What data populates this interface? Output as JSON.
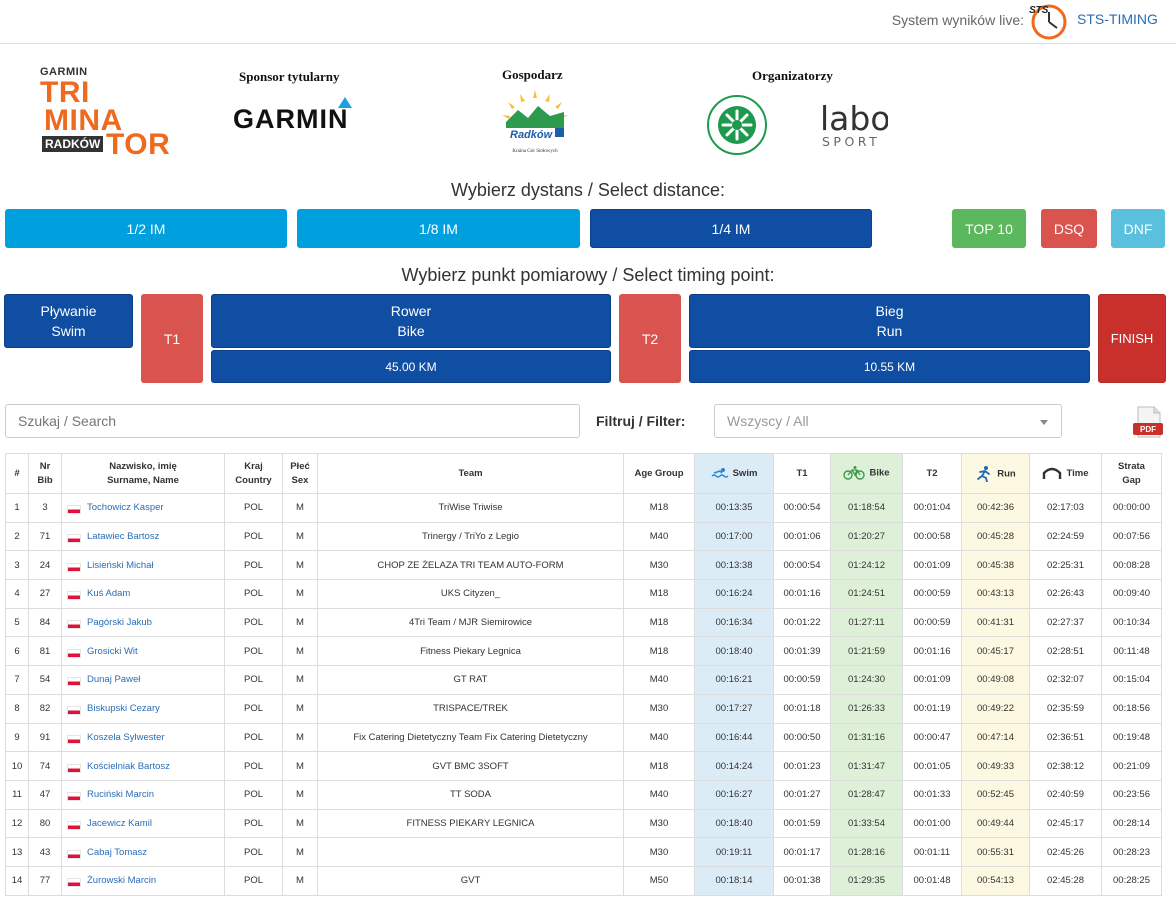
{
  "topbar": {
    "live_label": "System wyników live:",
    "logo_text": "STS",
    "link": "STS-TIMING"
  },
  "logos": {
    "triminator": {
      "garmin": "GARMIN",
      "line1": "TRI",
      "line2": "MINA",
      "radkow": "RADKÓW",
      "tor": "TOR"
    },
    "title_sponsor_heading": "Sponsor tytularny",
    "title_sponsor": "GARMIN",
    "host_heading": "Gospodarz",
    "host_name": "Radków",
    "host_caption": "Kraina Gór Stołowych",
    "organizers_heading": "Organizatorzy",
    "labo_line1": "labo",
    "labo_line2": "SPORT"
  },
  "distance": {
    "title": "Wybierz dystans / Select distance:",
    "buttons": [
      "1/2 IM",
      "1/8 IM",
      "1/4 IM"
    ],
    "top10": "TOP 10",
    "dsq": "DSQ",
    "dnf": "DNF"
  },
  "timing": {
    "title": "Wybierz punkt pomiarowy / Select timing point:",
    "swim_l1": "Pływanie",
    "swim_l2": "Swim",
    "t1": "T1",
    "bike_l1": "Rower",
    "bike_l2": "Bike",
    "bike_dist": "45.00 KM",
    "t2": "T2",
    "run_l1": "Bieg",
    "run_l2": "Run",
    "run_dist": "10.55 KM",
    "finish": "FINISH"
  },
  "search": {
    "placeholder": "Szukaj / Search"
  },
  "filter": {
    "label": "Filtruj / Filter:",
    "value": "Wszyscy / All"
  },
  "pdf_label": "PDF",
  "table": {
    "headers": {
      "rank": "#",
      "bib_l1": "Nr",
      "bib_l2": "Bib",
      "name_l1": "Nazwisko, imię",
      "name_l2": "Surname, Name",
      "country_l1": "Kraj",
      "country_l2": "Country",
      "sex_l1": "Płeć",
      "sex_l2": "Sex",
      "team": "Team",
      "age": "Age Group",
      "swim": "Swim",
      "t1": "T1",
      "bike": "Bike",
      "t2": "T2",
      "run": "Run",
      "time": "Time",
      "gap_l1": "Strata",
      "gap_l2": "Gap"
    },
    "rows": [
      [
        "1",
        "3",
        "Tochowicz Kasper",
        "POL",
        "M",
        "TriWise Triwise",
        "M18",
        "00:13:35",
        "00:00:54",
        "01:18:54",
        "00:01:04",
        "00:42:36",
        "02:17:03",
        "00:00:00"
      ],
      [
        "2",
        "71",
        "Latawiec Bartosz",
        "POL",
        "M",
        "Trinergy / TriYo z Legio",
        "M40",
        "00:17:00",
        "00:01:06",
        "01:20:27",
        "00:00:58",
        "00:45:28",
        "02:24:59",
        "00:07:56"
      ],
      [
        "3",
        "24",
        "Lisieński Michał",
        "POL",
        "M",
        "CHOP ZE ŻELAZA TRI TEAM AUTO-FORM",
        "M30",
        "00:13:38",
        "00:00:54",
        "01:24:12",
        "00:01:09",
        "00:45:38",
        "02:25:31",
        "00:08:28"
      ],
      [
        "4",
        "27",
        "Kuś Adam",
        "POL",
        "M",
        "UKS Cityzen_",
        "M18",
        "00:16:24",
        "00:01:16",
        "01:24:51",
        "00:00:59",
        "00:43:13",
        "02:26:43",
        "00:09:40"
      ],
      [
        "5",
        "84",
        "Pagórski Jakub",
        "POL",
        "M",
        "4Tri Team / MJR Siemirowice",
        "M18",
        "00:16:34",
        "00:01:22",
        "01:27:11",
        "00:00:59",
        "00:41:31",
        "02:27:37",
        "00:10:34"
      ],
      [
        "6",
        "81",
        "Grosicki Wit",
        "POL",
        "M",
        "Fitness Piekary Legnica",
        "M18",
        "00:18:40",
        "00:01:39",
        "01:21:59",
        "00:01:16",
        "00:45:17",
        "02:28:51",
        "00:11:48"
      ],
      [
        "7",
        "54",
        "Dunaj Paweł",
        "POL",
        "M",
        "GT RAT",
        "M40",
        "00:16:21",
        "00:00:59",
        "01:24:30",
        "00:01:09",
        "00:49:08",
        "02:32:07",
        "00:15:04"
      ],
      [
        "8",
        "82",
        "Biskupski Cezary",
        "POL",
        "M",
        "TRISPACE/TREK",
        "M30",
        "00:17:27",
        "00:01:18",
        "01:26:33",
        "00:01:19",
        "00:49:22",
        "02:35:59",
        "00:18:56"
      ],
      [
        "9",
        "91",
        "Koszela Sylwester",
        "POL",
        "M",
        "Fix Catering Dietetyczny Team Fix Catering Dietetyczny",
        "M40",
        "00:16:44",
        "00:00:50",
        "01:31:16",
        "00:00:47",
        "00:47:14",
        "02:36:51",
        "00:19:48"
      ],
      [
        "10",
        "74",
        "Kościelniak Bartosz",
        "POL",
        "M",
        "GVT BMC 3SOFT",
        "M18",
        "00:14:24",
        "00:01:23",
        "01:31:47",
        "00:01:05",
        "00:49:33",
        "02:38:12",
        "00:21:09"
      ],
      [
        "11",
        "47",
        "Ruciński Marcin",
        "POL",
        "M",
        "TT SODA",
        "M40",
        "00:16:27",
        "00:01:27",
        "01:28:47",
        "00:01:33",
        "00:52:45",
        "02:40:59",
        "00:23:56"
      ],
      [
        "12",
        "80",
        "Jacewicz Kamil",
        "POL",
        "M",
        "FITNESS PIEKARY LEGNICA",
        "M30",
        "00:18:40",
        "00:01:59",
        "01:33:54",
        "00:01:00",
        "00:49:44",
        "02:45:17",
        "00:28:14"
      ],
      [
        "13",
        "43",
        "Cabaj Tomasz",
        "POL",
        "M",
        "",
        "M30",
        "00:19:11",
        "00:01:17",
        "01:28:16",
        "00:01:11",
        "00:55:31",
        "02:45:26",
        "00:28:23"
      ],
      [
        "14",
        "77",
        "Żurowski Marcin",
        "POL",
        "M",
        "GVT",
        "M50",
        "00:18:14",
        "00:01:38",
        "01:29:35",
        "00:01:48",
        "00:54:13",
        "02:45:28",
        "00:28:25"
      ]
    ]
  }
}
